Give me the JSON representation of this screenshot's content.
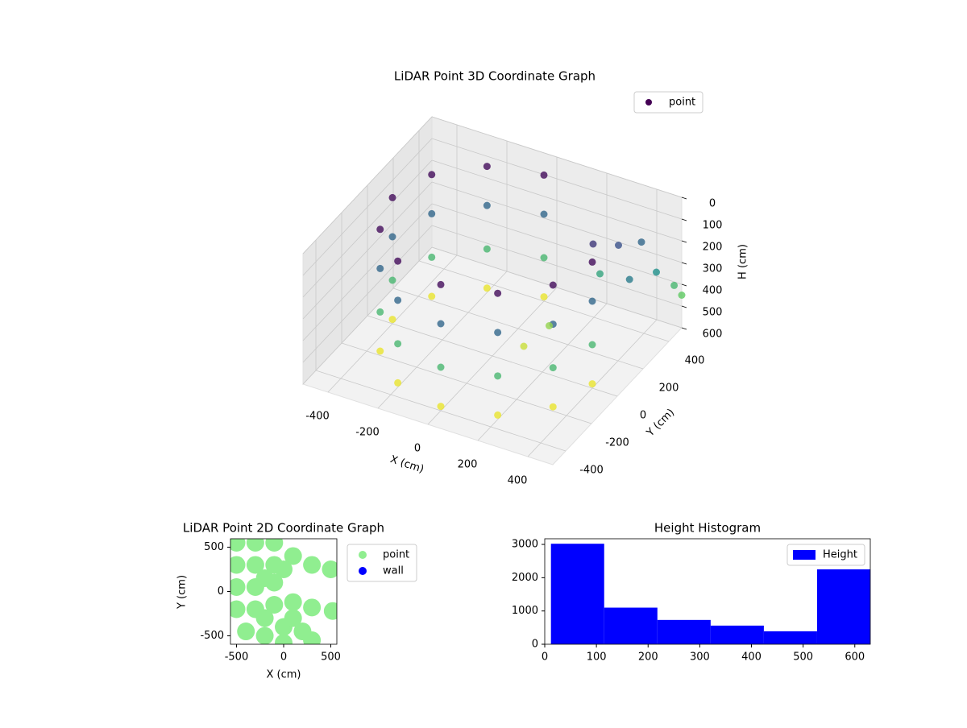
{
  "chart_data": [
    {
      "type": "scatter3d",
      "title": "LiDAR Point 3D Coordinate Graph",
      "x_label": "X (cm)",
      "y_label": "Y (cm)",
      "z_label": "H (cm)",
      "xlim": [
        -500,
        500
      ],
      "ylim": [
        -500,
        500
      ],
      "zlim": [
        600,
        0
      ],
      "xticks": [
        -400,
        -200,
        0,
        200,
        400
      ],
      "yticks": [
        -400,
        -200,
        0,
        200,
        400
      ],
      "zticks": [
        0,
        100,
        200,
        300,
        400,
        500,
        600
      ],
      "colormap": "viridis",
      "legend": "upper right",
      "grid": true,
      "series": [
        {
          "name": "point",
          "color": "#440154",
          "x": [
            0,
            0,
            0,
            0,
            -200,
            -200,
            -200,
            -200,
            -346,
            -346,
            -346,
            -346,
            -400,
            -400,
            -400,
            -400,
            -346,
            -346,
            -346,
            -346,
            -200,
            -200,
            -200,
            -200,
            0,
            0,
            0,
            0,
            200,
            200,
            200,
            200,
            346,
            346,
            346,
            346,
            400,
            400,
            400,
            400,
            350,
            450,
            480,
            300,
            250,
            420,
            500,
            150,
            100,
            380
          ],
          "y": [
            400,
            400,
            400,
            400,
            346,
            346,
            346,
            346,
            200,
            200,
            200,
            200,
            0,
            0,
            0,
            0,
            -200,
            -200,
            -200,
            -200,
            -346,
            -346,
            -346,
            -346,
            -400,
            -400,
            -400,
            -400,
            -346,
            -346,
            -346,
            -346,
            -200,
            -200,
            -200,
            -200,
            0,
            0,
            0,
            0,
            300,
            400,
            480,
            200,
            350,
            250,
            500,
            150,
            50,
            420
          ],
          "values": [
            20,
            200,
            400,
            580,
            20,
            200,
            400,
            580,
            20,
            200,
            400,
            580,
            20,
            200,
            400,
            580,
            20,
            200,
            400,
            580,
            20,
            200,
            400,
            580,
            20,
            200,
            400,
            580,
            20,
            200,
            400,
            580,
            20,
            200,
            400,
            580,
            20,
            200,
            400,
            580,
            150,
            300,
            400,
            100,
            350,
            250,
            450,
            500,
            550,
            200
          ]
        }
      ]
    },
    {
      "type": "scatter",
      "title": "LiDAR Point 2D Coordinate Graph",
      "x_label": "X (cm)",
      "y_label": "Y (cm)",
      "xlim": [
        -564,
        564
      ],
      "ylim": [
        -595,
        595
      ],
      "xticks": [
        -500,
        0,
        500
      ],
      "yticks": [
        -500,
        0,
        500
      ],
      "legend": "outside right",
      "series": [
        {
          "name": "point",
          "color": "#90ee90",
          "x": [
            -500,
            -300,
            -100,
            -500,
            -300,
            -100,
            100,
            300,
            500,
            -500,
            -300,
            -100,
            -500,
            -300,
            -100,
            100,
            300,
            520,
            -400,
            -200,
            0,
            200,
            300,
            0,
            -200,
            100,
            -200,
            0
          ],
          "values": [
            550,
            550,
            550,
            300,
            300,
            300,
            400,
            300,
            250,
            50,
            50,
            100,
            -200,
            -200,
            -150,
            -120,
            -180,
            -220,
            -450,
            -500,
            -400,
            -450,
            -550,
            -580,
            -300,
            -300,
            150,
            250
          ]
        },
        {
          "name": "wall",
          "color": "#0000ff",
          "x": [],
          "values": []
        }
      ]
    },
    {
      "type": "histogram",
      "title": "Height Histogram",
      "xlim": [
        0,
        630
      ],
      "ylim": [
        0,
        3170
      ],
      "xticks": [
        0,
        100,
        200,
        300,
        400,
        500,
        600
      ],
      "yticks": [
        0,
        1000,
        2000,
        3000
      ],
      "legend": "upper right",
      "bins": [
        12,
        115,
        218,
        321,
        424,
        527,
        630
      ],
      "series": [
        {
          "name": "Height",
          "color": "#0000ff",
          "values": [
            3020,
            1100,
            730,
            560,
            390,
            2250
          ]
        }
      ]
    }
  ]
}
